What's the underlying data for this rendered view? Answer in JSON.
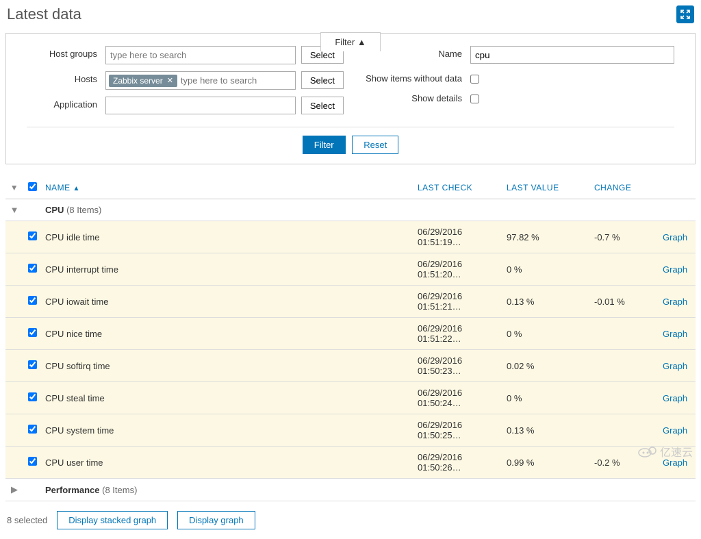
{
  "page": {
    "title": "Latest data",
    "selected_count_label": "8 selected"
  },
  "filter": {
    "tab_label": "Filter ▲",
    "host_groups_label": "Host groups",
    "host_groups_placeholder": "type here to search",
    "hosts_label": "Hosts",
    "hosts_placeholder": "type here to search",
    "hosts_tag": "Zabbix server",
    "application_label": "Application",
    "name_label": "Name",
    "name_value": "cpu",
    "show_no_data_label": "Show items without data",
    "show_details_label": "Show details",
    "select_label": "Select",
    "filter_btn": "Filter",
    "reset_btn": "Reset"
  },
  "table": {
    "headers": {
      "name": "Name",
      "last_check": "Last check",
      "last_value": "Last value",
      "change": "Change"
    },
    "sort_indicator": "▲",
    "graph_label": "Graph"
  },
  "groups": [
    {
      "name": "CPU",
      "count": "(8 Items)",
      "expanded": true
    },
    {
      "name": "Performance",
      "count": "(8 Items)",
      "expanded": false
    }
  ],
  "items": [
    {
      "name": "CPU idle time",
      "last_check": "06/29/2016 01:51:19…",
      "last_value": "97.82 %",
      "change": "-0.7 %"
    },
    {
      "name": "CPU interrupt time",
      "last_check": "06/29/2016 01:51:20…",
      "last_value": "0 %",
      "change": ""
    },
    {
      "name": "CPU iowait time",
      "last_check": "06/29/2016 01:51:21…",
      "last_value": "0.13 %",
      "change": "-0.01 %"
    },
    {
      "name": "CPU nice time",
      "last_check": "06/29/2016 01:51:22…",
      "last_value": "0 %",
      "change": ""
    },
    {
      "name": "CPU softirq time",
      "last_check": "06/29/2016 01:50:23…",
      "last_value": "0.02 %",
      "change": ""
    },
    {
      "name": "CPU steal time",
      "last_check": "06/29/2016 01:50:24…",
      "last_value": "0 %",
      "change": ""
    },
    {
      "name": "CPU system time",
      "last_check": "06/29/2016 01:50:25…",
      "last_value": "0.13 %",
      "change": ""
    },
    {
      "name": "CPU user time",
      "last_check": "06/29/2016 01:50:26…",
      "last_value": "0.99 %",
      "change": "-0.2 %"
    }
  ],
  "footer": {
    "stacked_btn": "Display stacked graph",
    "graph_btn": "Display graph"
  },
  "watermark": "亿速云"
}
